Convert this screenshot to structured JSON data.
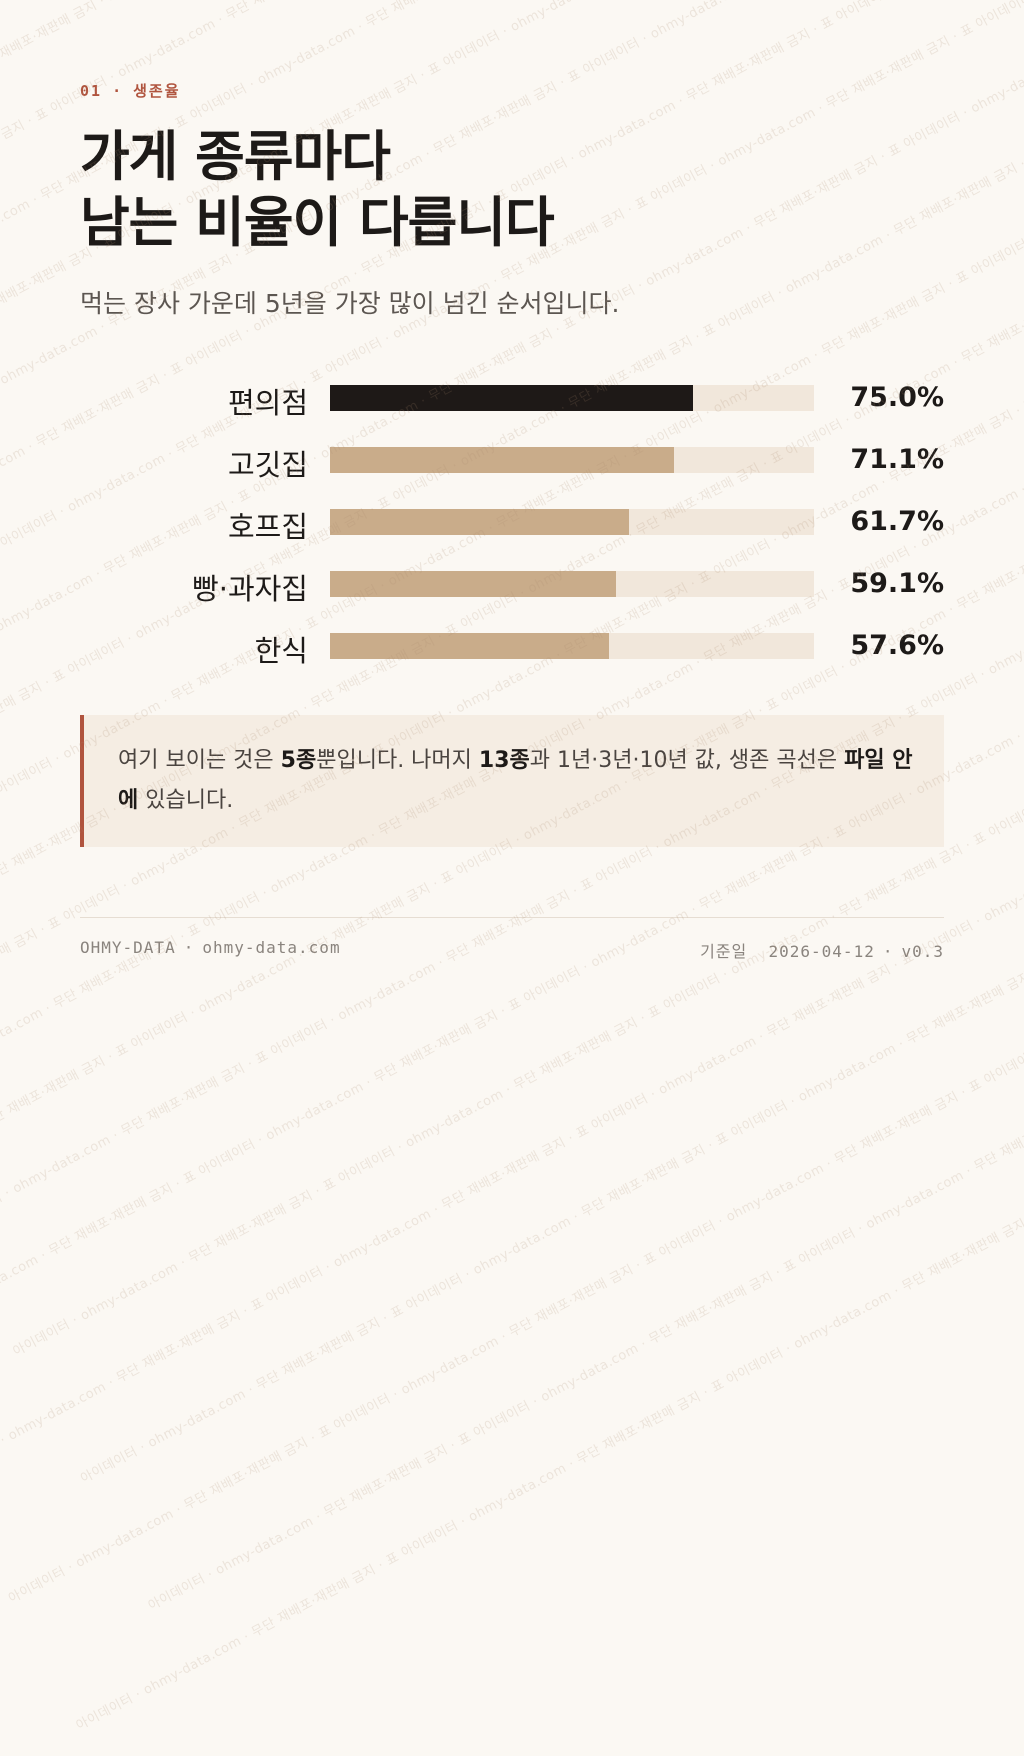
{
  "header": {
    "section_number": "01",
    "section_separator": "·",
    "section_name": "생존율",
    "title_line1": "가게 종류마다",
    "title_line2": "남는 비율이 다릅니다",
    "subtitle": "먹는 장사 가운데 5년을 가장 많이 넘긴 순서입니다."
  },
  "colors": {
    "highlight_bar": "#1e1917",
    "default_bar": "#c9ac8a",
    "bar_track": "#f1e7db",
    "accent": "#b0543e",
    "background": "#fbf8f3"
  },
  "chart_data": {
    "type": "bar",
    "orientation": "horizontal",
    "categories": [
      "편의점",
      "고깃집",
      "호프집",
      "빵·과자집",
      "한식"
    ],
    "values": [
      75.0,
      71.1,
      61.7,
      59.1,
      57.6
    ],
    "value_labels": [
      "75.0%",
      "71.1%",
      "61.7%",
      "59.1%",
      "57.6%"
    ],
    "xlim": [
      0,
      100
    ],
    "highlight_index": 0,
    "grid": false
  },
  "note": {
    "part1": "여기 보이는 것은 ",
    "bold1": "5종",
    "part2": "뿐입니다. 나머지 ",
    "bold2": "13종",
    "part3": "과 1년·3년·10년 값, 생존 곡선은 ",
    "bold3": "파일 안에",
    "part4": " 있습니다."
  },
  "footer": {
    "brand": "OHMY-DATA",
    "separator": "·",
    "site": "ohmy-data.com",
    "date_label": "기준일",
    "date": "2026-04-12",
    "version": "v0.3"
  },
  "watermark": {
    "text": "아이데이터 · ohmy-data.com · 무단 재배포·재판매 금지 · 표"
  }
}
